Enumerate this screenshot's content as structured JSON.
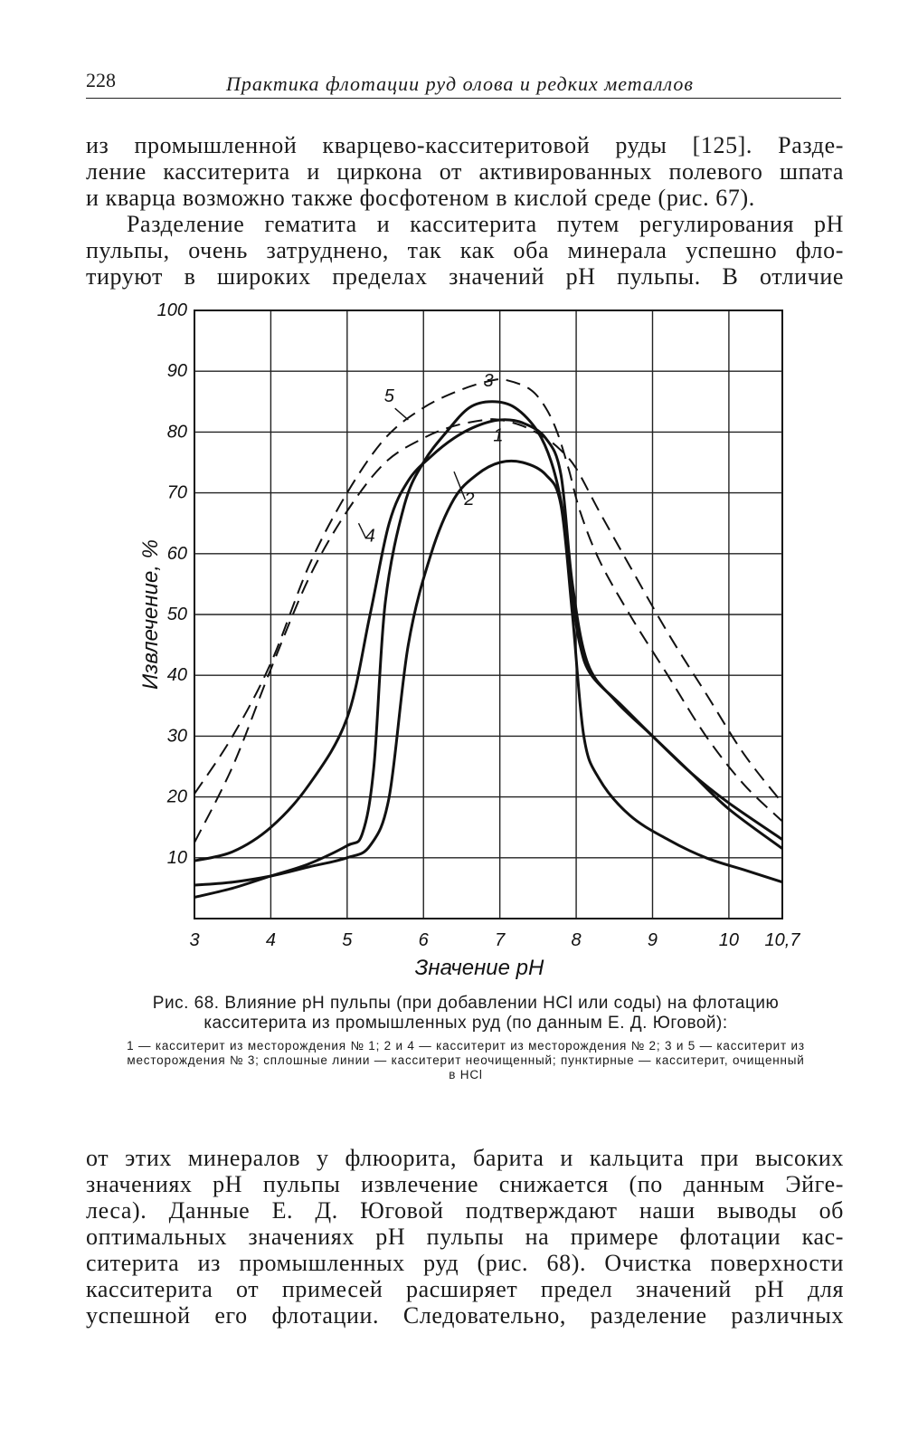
{
  "header": {
    "page_number": "228",
    "running_title": "Практика флотации руд олова и редких металлов"
  },
  "paragraph_top": {
    "lines": [
      "из промышленной кварцево-касситеритовой руды [125]. Разде-",
      "ление касситерита и циркона от активированных полевого шпата",
      "и кварца возможно также фосфотеном в кислой среде (рис. 67).",
      "Разделение гематита и касситерита путем регулирования pH",
      "пульпы, очень затруднено, так как оба минерала успешно фло-",
      "тируют в широких пределах значений pH пульпы. В отличие"
    ]
  },
  "chart_data": {
    "type": "line",
    "xlabel": "Значение рН",
    "ylabel": "Извлечение, %",
    "xlim": [
      3,
      10.7
    ],
    "ylim": [
      0,
      100
    ],
    "x_ticks": [
      "3",
      "4",
      "5",
      "6",
      "7",
      "8",
      "9",
      "10",
      "10,7"
    ],
    "y_ticks": [
      "10",
      "20",
      "30",
      "40",
      "50",
      "60",
      "70",
      "80",
      "90",
      "100"
    ],
    "grid": true,
    "series": [
      {
        "name": "1",
        "style": "solid",
        "x": [
          3,
          3.5,
          4,
          4.5,
          5,
          5.3,
          5.55,
          5.8,
          6.1,
          6.4,
          6.7,
          7,
          7.3,
          7.6,
          7.8,
          7.95,
          8.1,
          8.3,
          8.7,
          9.2,
          9.7,
          10.2,
          10.7
        ],
        "y": [
          5.5,
          6,
          7,
          8.5,
          10,
          12,
          20,
          45,
          60,
          69,
          73,
          75,
          75,
          73,
          68,
          50,
          30,
          23,
          17,
          13,
          10,
          8,
          6
        ]
      },
      {
        "name": "2",
        "style": "solid",
        "x": [
          3,
          3.5,
          4,
          4.5,
          5,
          5.3,
          5.55,
          5.8,
          6.1,
          6.4,
          6.7,
          7,
          7.3,
          7.6,
          7.8,
          7.95,
          8.15,
          8.5,
          9,
          9.5,
          10,
          10.7
        ],
        "y": [
          9.5,
          11,
          15,
          22,
          33,
          50,
          65,
          72,
          76,
          79,
          81,
          82,
          81.5,
          79,
          73,
          55,
          42,
          36,
          30,
          24,
          18,
          11.5
        ]
      },
      {
        "name": "3",
        "style": "solid",
        "x": [
          3,
          3.5,
          4,
          4.5,
          5,
          5.2,
          5.35,
          5.5,
          5.75,
          6,
          6.3,
          6.6,
          6.9,
          7.2,
          7.5,
          7.7,
          7.85,
          7.95,
          8.05,
          8.2,
          8.6,
          9,
          9.5,
          10,
          10.7
        ],
        "y": [
          3.5,
          5,
          7,
          9,
          12,
          14,
          25,
          52,
          68,
          75,
          80,
          84,
          85,
          84,
          80,
          74,
          65,
          53,
          45,
          40,
          35,
          30,
          24,
          19,
          13
        ]
      },
      {
        "name": "4",
        "style": "dashed",
        "x": [
          3,
          3.5,
          4,
          4.5,
          5,
          5.5,
          6,
          6.4,
          6.8,
          7,
          7.3,
          7.6,
          7.8,
          8,
          8.3,
          8.7,
          9.2,
          9.7,
          10.2,
          10.7
        ],
        "y": [
          12.5,
          25,
          41,
          56,
          67,
          75,
          79,
          81,
          82,
          82,
          81,
          79,
          77,
          74,
          67,
          58,
          47,
          37,
          27,
          19
        ]
      },
      {
        "name": "5",
        "style": "dashed",
        "x": [
          3,
          3.5,
          4,
          4.5,
          5,
          5.5,
          6,
          6.5,
          6.9,
          7.1,
          7.4,
          7.6,
          7.75,
          7.9,
          8.05,
          8.3,
          8.7,
          9.2,
          9.7,
          10.2,
          10.7
        ],
        "y": [
          20.5,
          30,
          42,
          58,
          70,
          79,
          84,
          87,
          88.5,
          88.5,
          87,
          84,
          80,
          74,
          67,
          59,
          50,
          40,
          30,
          22,
          16
        ]
      }
    ],
    "curve_labels": [
      "1",
      "2",
      "3",
      "4",
      "5"
    ]
  },
  "caption": {
    "main": "Рис. 68. Влияние pH пульпы (при добавлении HCl или соды) на флотацию касситерита из промышленных руд (по данным Е. Д. Юговой):",
    "legend": "1 — касситерит из месторождения № 1; 2 и 4 — касситерит из месторождения № 2; 3 и 5 — касситерит из месторождения № 3; сплошные линии — касситерит неочищенный; пунктирные — касситерит, очищенный в HCl"
  },
  "paragraph_bottom": {
    "lines": [
      "от этих минералов у флюорита, барита и кальцита при высоких",
      "значениях pH пульпы извлечение снижается (по данным Эйге-",
      "леса). Данные Е. Д. Юговой подтверждают наши выводы об",
      "оптимальных значениях pH пульпы на примере флотации кас-",
      "ситерита из промышленных руд (рис. 68). Очистка поверхности",
      "касситерита от примесей расширяет предел значений pH для",
      "успешной его флотации. Следовательно, разделение различных"
    ]
  }
}
